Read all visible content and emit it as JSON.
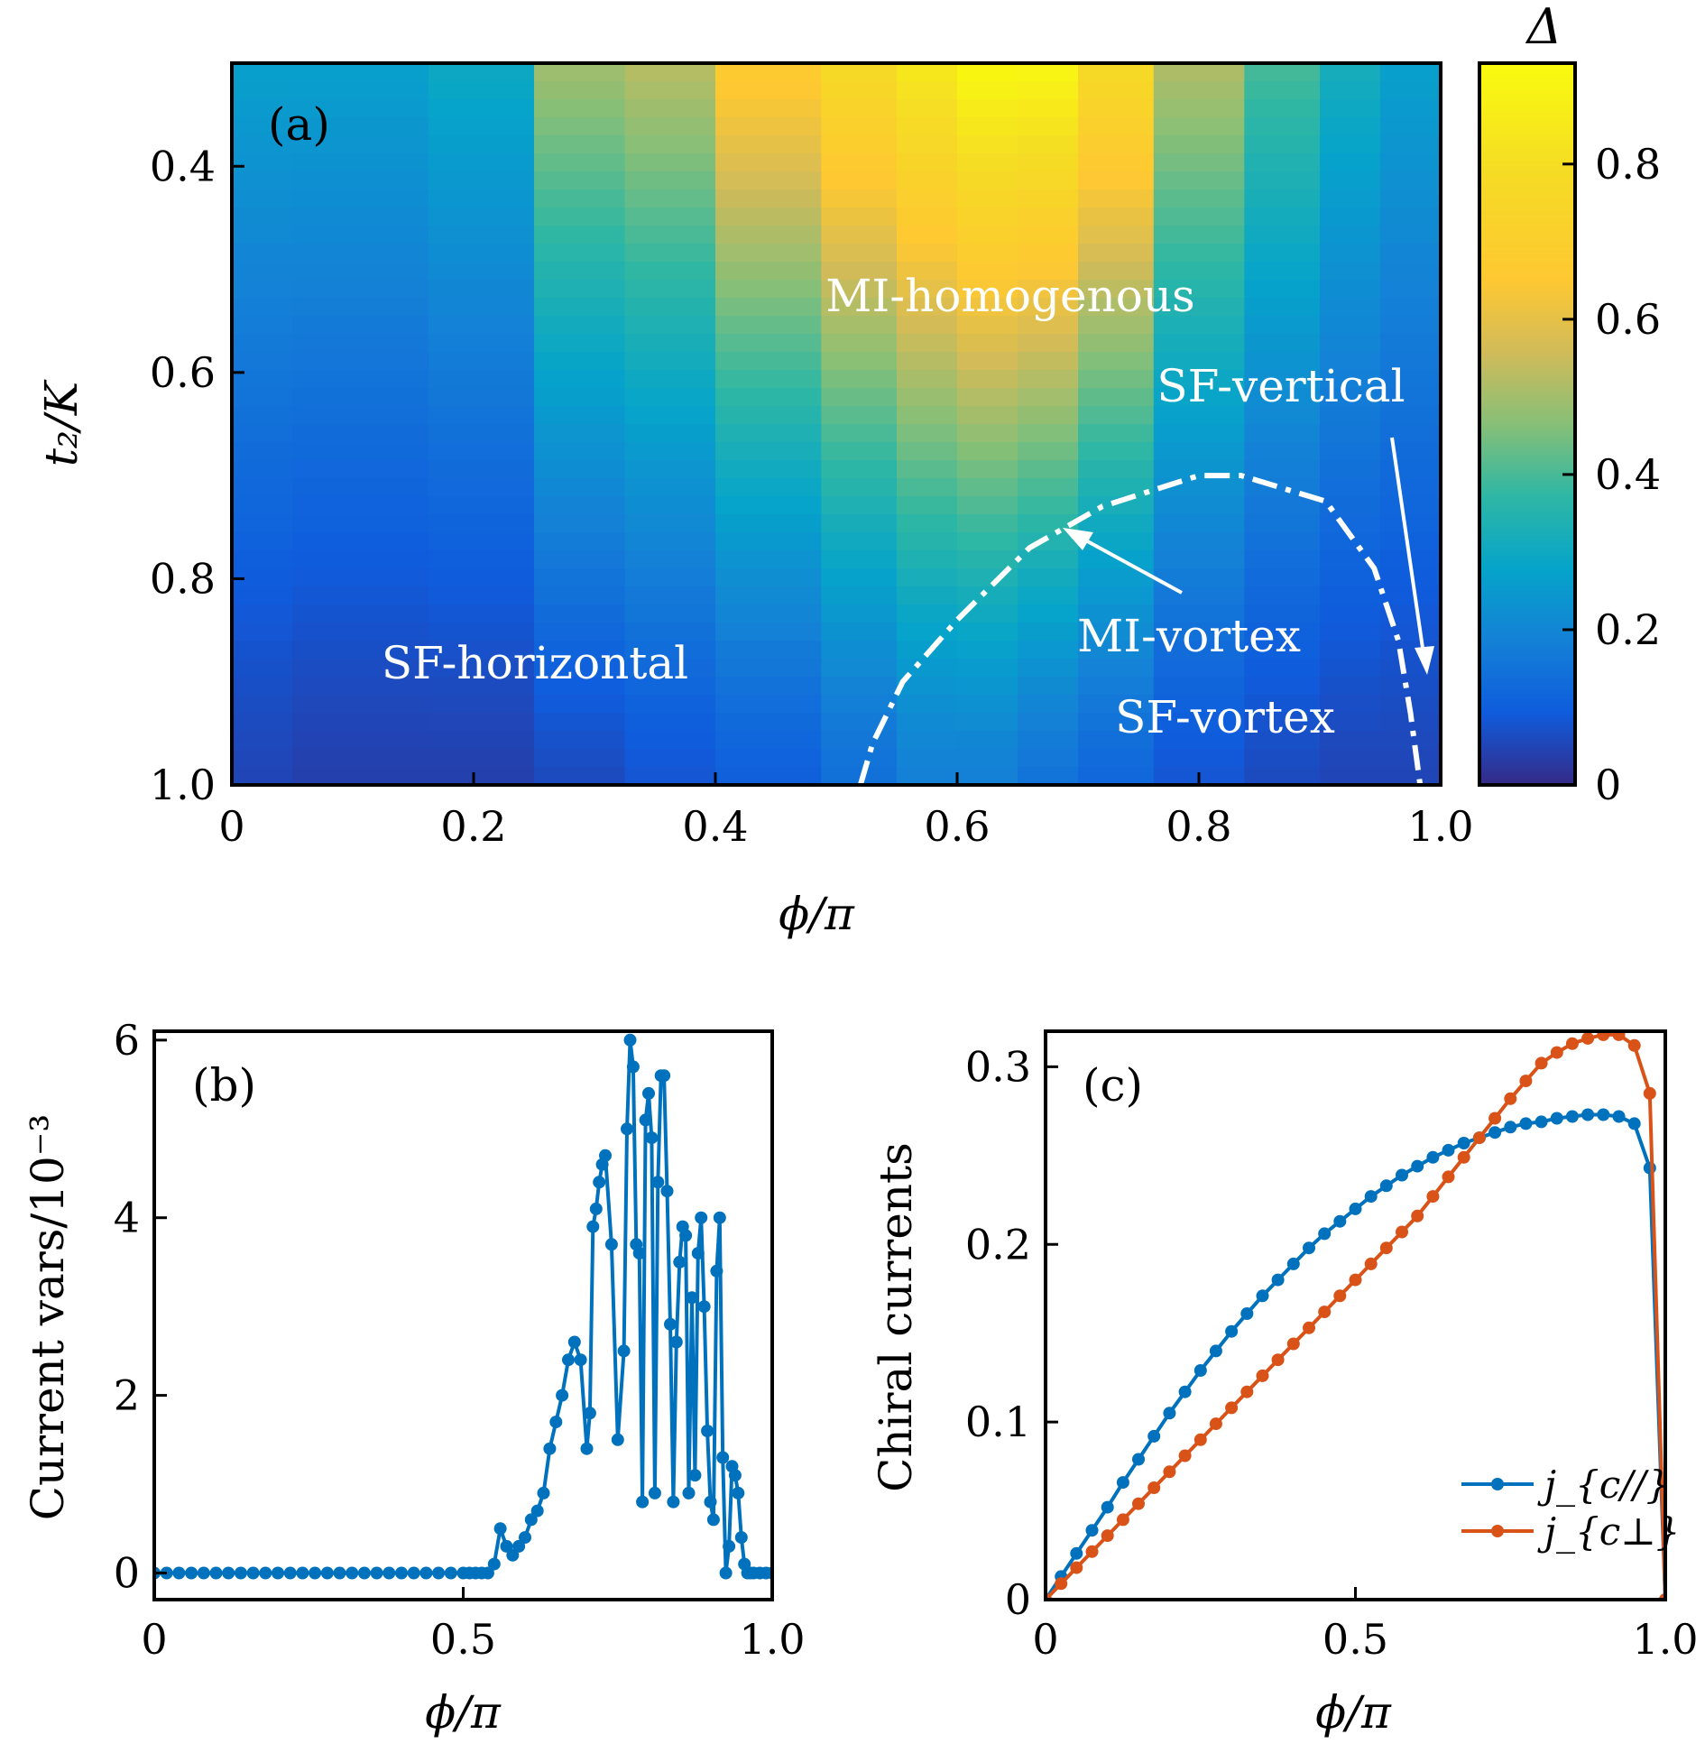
{
  "chart_data": [
    {
      "panel": "(a)",
      "type": "heatmap",
      "xlabel": "ϕ/π",
      "ylabel": "t₂/K",
      "xlim": [
        0,
        1.0
      ],
      "ylim": [
        0.3,
        1.0
      ],
      "y_inverted": true,
      "xticks": [
        "0",
        "0.2",
        "0.4",
        "0.6",
        "0.8",
        "1.0"
      ],
      "yticks": [
        "0.4",
        "0.6",
        "0.8",
        "1.0"
      ],
      "colorbar": {
        "label": "Δ",
        "range": [
          0,
          0.93
        ],
        "ticks": [
          "0",
          "0.2",
          "0.4",
          "0.6",
          "0.8"
        ],
        "colormap": "parula"
      },
      "column_peaks": [
        0.27,
        0.27,
        0.27,
        0.3,
        0.5,
        0.53,
        0.68,
        0.78,
        0.85,
        0.92,
        0.91,
        0.78,
        0.52,
        0.4,
        0.32,
        0.27
      ],
      "x_columns": [
        0.025,
        0.075,
        0.125,
        0.2,
        0.3,
        0.35,
        0.45,
        0.525,
        0.575,
        0.625,
        0.675,
        0.725,
        0.8,
        0.875,
        0.925,
        0.975
      ],
      "column_floors": [
        0.05,
        0.04,
        0.04,
        0.04,
        0.06,
        0.08,
        0.1,
        0.14,
        0.18,
        0.18,
        0.15,
        0.12,
        0.08,
        0.06,
        0.05,
        0.05
      ],
      "boundary_curve": {
        "style": "dash-dot",
        "x": [
          0.52,
          0.53,
          0.555,
          0.6,
          0.66,
          0.72,
          0.8,
          0.835,
          0.905,
          0.945,
          0.965,
          0.975,
          0.983
        ],
        "y": [
          1.0,
          0.96,
          0.9,
          0.84,
          0.77,
          0.73,
          0.7,
          0.7,
          0.725,
          0.79,
          0.86,
          0.93,
          1.0
        ]
      },
      "region_labels": [
        "MI-homogenous",
        "SF-vertical",
        "MI-vortex",
        "SF-vortex",
        "SF-horizontal"
      ]
    },
    {
      "panel": "(b)",
      "type": "line",
      "xlabel": "ϕ/π",
      "ylabel": "Current vars/10⁻³",
      "xlim": [
        0,
        1.0
      ],
      "ylim": [
        -0.3,
        6.1
      ],
      "xticks": [
        "0",
        "0.5",
        "1.0"
      ],
      "yticks": [
        "0",
        "2",
        "4",
        "6"
      ],
      "series": [
        {
          "color": "#0072bd",
          "x": [
            0,
            0.02,
            0.04,
            0.06,
            0.08,
            0.1,
            0.12,
            0.14,
            0.16,
            0.18,
            0.2,
            0.22,
            0.24,
            0.26,
            0.28,
            0.3,
            0.32,
            0.34,
            0.36,
            0.38,
            0.4,
            0.42,
            0.44,
            0.46,
            0.48,
            0.5,
            0.51,
            0.52,
            0.53,
            0.54,
            0.55,
            0.56,
            0.57,
            0.58,
            0.59,
            0.6,
            0.61,
            0.62,
            0.63,
            0.64,
            0.65,
            0.66,
            0.67,
            0.68,
            0.69,
            0.7,
            0.705,
            0.71,
            0.715,
            0.72,
            0.725,
            0.73,
            0.74,
            0.75,
            0.76,
            0.765,
            0.77,
            0.775,
            0.78,
            0.785,
            0.79,
            0.795,
            0.8,
            0.805,
            0.81,
            0.815,
            0.82,
            0.825,
            0.83,
            0.835,
            0.84,
            0.845,
            0.85,
            0.855,
            0.86,
            0.865,
            0.87,
            0.875,
            0.88,
            0.885,
            0.89,
            0.895,
            0.9,
            0.905,
            0.91,
            0.915,
            0.92,
            0.925,
            0.93,
            0.935,
            0.94,
            0.945,
            0.95,
            0.955,
            0.96,
            0.965,
            0.97,
            0.98,
            0.99,
            1.0
          ],
          "y": [
            0,
            0,
            0,
            0,
            0,
            0,
            0,
            0,
            0,
            0,
            0,
            0,
            0,
            0,
            0,
            0,
            0,
            0,
            0,
            0,
            0,
            0,
            0,
            0,
            0,
            0,
            0,
            0,
            0,
            0,
            0.1,
            0.5,
            0.3,
            0.2,
            0.3,
            0.4,
            0.6,
            0.7,
            0.9,
            1.4,
            1.7,
            2.0,
            2.4,
            2.6,
            2.4,
            1.4,
            1.8,
            3.9,
            4.1,
            4.4,
            4.6,
            4.7,
            3.7,
            1.5,
            2.5,
            5.0,
            6.0,
            5.7,
            3.7,
            3.6,
            0.8,
            5.1,
            5.4,
            4.9,
            0.9,
            4.4,
            5.6,
            5.6,
            4.3,
            2.8,
            0.8,
            2.6,
            3.5,
            3.9,
            3.8,
            0.9,
            3.1,
            1.1,
            3.6,
            4.0,
            3.0,
            1.6,
            0.8,
            0.6,
            3.4,
            4.0,
            1.3,
            0.0,
            0.3,
            1.2,
            1.1,
            0.9,
            0.4,
            0.1,
            0.0,
            0.0,
            0.0,
            0.0,
            0.0,
            0.0
          ]
        }
      ]
    },
    {
      "panel": "(c)",
      "type": "line",
      "xlabel": "ϕ/π",
      "ylabel": "Chiral currents",
      "xlim": [
        0,
        1.0
      ],
      "ylim": [
        0,
        0.32
      ],
      "xticks": [
        "0",
        "0.5",
        "1.0"
      ],
      "yticks": [
        "0",
        "0.1",
        "0.2",
        "0.3"
      ],
      "legend_position": "lower-right",
      "series": [
        {
          "name": "j_{c//}",
          "color": "#0072bd",
          "x": [
            0,
            0.025,
            0.05,
            0.075,
            0.1,
            0.125,
            0.15,
            0.175,
            0.2,
            0.225,
            0.25,
            0.275,
            0.3,
            0.325,
            0.35,
            0.375,
            0.4,
            0.425,
            0.45,
            0.475,
            0.5,
            0.525,
            0.55,
            0.575,
            0.6,
            0.625,
            0.65,
            0.675,
            0.7,
            0.725,
            0.75,
            0.775,
            0.8,
            0.825,
            0.85,
            0.875,
            0.9,
            0.925,
            0.95,
            0.975,
            1.0
          ],
          "y": [
            0,
            0.013,
            0.026,
            0.039,
            0.052,
            0.066,
            0.079,
            0.092,
            0.105,
            0.117,
            0.129,
            0.14,
            0.151,
            0.161,
            0.171,
            0.18,
            0.189,
            0.198,
            0.206,
            0.213,
            0.22,
            0.227,
            0.233,
            0.239,
            0.244,
            0.249,
            0.253,
            0.257,
            0.26,
            0.263,
            0.266,
            0.268,
            0.269,
            0.271,
            0.272,
            0.273,
            0.273,
            0.272,
            0.268,
            0.243,
            0.0
          ]
        },
        {
          "name": "j_{c⊥}",
          "color": "#d95319",
          "x": [
            0,
            0.025,
            0.05,
            0.075,
            0.1,
            0.125,
            0.15,
            0.175,
            0.2,
            0.225,
            0.25,
            0.275,
            0.3,
            0.325,
            0.35,
            0.375,
            0.4,
            0.425,
            0.45,
            0.475,
            0.5,
            0.525,
            0.55,
            0.575,
            0.6,
            0.625,
            0.65,
            0.675,
            0.7,
            0.725,
            0.75,
            0.775,
            0.8,
            0.825,
            0.85,
            0.875,
            0.9,
            0.925,
            0.95,
            0.975,
            1.0
          ],
          "y": [
            0,
            0.009,
            0.018,
            0.027,
            0.036,
            0.045,
            0.054,
            0.063,
            0.072,
            0.081,
            0.09,
            0.099,
            0.108,
            0.117,
            0.126,
            0.135,
            0.144,
            0.153,
            0.162,
            0.171,
            0.18,
            0.189,
            0.198,
            0.207,
            0.216,
            0.227,
            0.238,
            0.249,
            0.26,
            0.271,
            0.282,
            0.292,
            0.302,
            0.308,
            0.313,
            0.316,
            0.318,
            0.318,
            0.312,
            0.285,
            0.0
          ]
        }
      ]
    }
  ]
}
